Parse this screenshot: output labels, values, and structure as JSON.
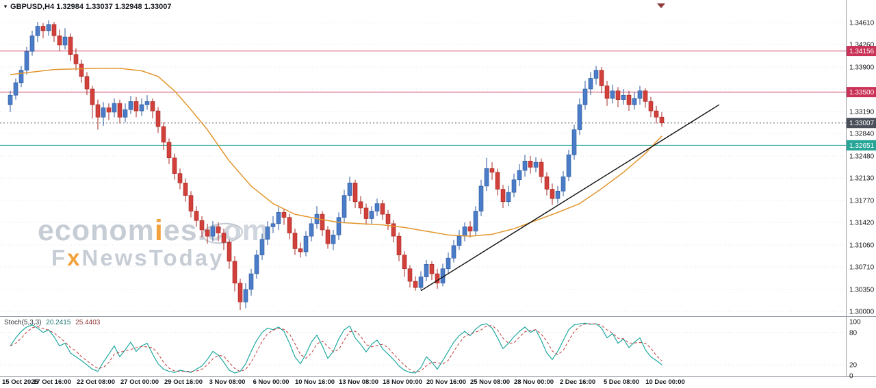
{
  "header": {
    "collapse_icon": "▾",
    "title": "GBPUSD,H4 1.32984 1.33037 1.32948 1.33007"
  },
  "watermark": {
    "line1": [
      {
        "t": "econom",
        "c": "g"
      },
      {
        "t": "i",
        "c": "o"
      },
      {
        "t": "es",
        "c": "g"
      },
      {
        "t": ".com",
        "c": "l"
      }
    ],
    "line2": [
      {
        "t": "F",
        "c": "g"
      },
      {
        "t": "x",
        "c": "o"
      },
      {
        "t": "NewsToday",
        "c": "g"
      }
    ]
  },
  "stoch_header": {
    "name": "Stoch(5,3,3)",
    "main": "20.2415",
    "signal": "25.4403"
  },
  "chart_data": {
    "type": "candlestick",
    "symbol": "GBPUSD",
    "timeframe": "H4",
    "title": "GBPUSD,H4",
    "quote_ohlc": {
      "open": 1.32984,
      "high": 1.33037,
      "low": 1.32948,
      "close": 1.33007
    },
    "colors": {
      "up": "#4a7cc7",
      "up_stroke": "#2a579c",
      "down": "#d2403b",
      "down_stroke": "#a6241f",
      "ma": "#e2962d",
      "trend": "#111111",
      "stoch_main": "#1fa8a0",
      "stoch_signal": "#c03a3a",
      "grid": "#dfe2e6",
      "axis_text": "#14161a",
      "separator": "#9aa0a8",
      "shift_marker": "#8a3b3b"
    },
    "y_axis": {
      "price_max": 1.3461,
      "price_min": 1.3,
      "grid_prices": [
        1.3461,
        1.3426,
        1.339,
        1.3355,
        1.3319,
        1.3284,
        1.3248,
        1.3213,
        1.3177,
        1.3142,
        1.3106,
        1.3071,
        1.3035,
        1.3
      ],
      "labels": [
        1.3461,
        1.3426,
        1.339,
        1.3319,
        1.3284,
        1.3248,
        1.3213,
        1.3177,
        1.3142,
        1.3106,
        1.3071,
        1.3035,
        1.3
      ]
    },
    "levels": [
      {
        "price": 1.34156,
        "color": "#cb3257",
        "style": "solid",
        "name": "resistance-line-1-34156"
      },
      {
        "price": 1.335,
        "color": "#cb3257",
        "style": "solid",
        "name": "resistance-line-1-33500"
      },
      {
        "price": 1.33007,
        "color": "#4a4f59",
        "style": "dotted",
        "name": "current-price-line"
      },
      {
        "price": 1.32651,
        "color": "#27a698",
        "style": "solid",
        "name": "support-line-1-32651"
      }
    ],
    "candles": [
      [
        1.333,
        1.3352,
        1.3318,
        1.3345
      ],
      [
        1.3345,
        1.3372,
        1.3338,
        1.3365
      ],
      [
        1.3365,
        1.3392,
        1.3358,
        1.3385
      ],
      [
        1.3385,
        1.3422,
        1.3378,
        1.3415
      ],
      [
        1.3415,
        1.3448,
        1.3408,
        1.344
      ],
      [
        1.344,
        1.3462,
        1.343,
        1.3455
      ],
      [
        1.3455,
        1.346,
        1.3436,
        1.3448
      ],
      [
        1.3448,
        1.3465,
        1.344,
        1.3458
      ],
      [
        1.3458,
        1.3462,
        1.343,
        1.344
      ],
      [
        1.344,
        1.345,
        1.3415,
        1.3425
      ],
      [
        1.3425,
        1.3452,
        1.3418,
        1.3438
      ],
      [
        1.3438,
        1.3444,
        1.34,
        1.341
      ],
      [
        1.341,
        1.342,
        1.3385,
        1.3395
      ],
      [
        1.3395,
        1.3402,
        1.3365,
        1.3375
      ],
      [
        1.3375,
        1.3382,
        1.3345,
        1.3355
      ],
      [
        1.3355,
        1.336,
        1.3308,
        1.333
      ],
      [
        1.333,
        1.3338,
        1.329,
        1.331
      ],
      [
        1.331,
        1.3334,
        1.3296,
        1.3325
      ],
      [
        1.3325,
        1.3332,
        1.3305,
        1.3318
      ],
      [
        1.3318,
        1.334,
        1.331,
        1.3332
      ],
      [
        1.3332,
        1.3338,
        1.33,
        1.331
      ],
      [
        1.331,
        1.3332,
        1.3302,
        1.3322
      ],
      [
        1.3322,
        1.3344,
        1.3315,
        1.3335
      ],
      [
        1.3335,
        1.3342,
        1.331,
        1.332
      ],
      [
        1.332,
        1.334,
        1.3312,
        1.333
      ],
      [
        1.333,
        1.3345,
        1.3322,
        1.3335
      ],
      [
        1.3335,
        1.334,
        1.3308,
        1.332
      ],
      [
        1.332,
        1.3326,
        1.3285,
        1.3295
      ],
      [
        1.3295,
        1.3302,
        1.3258,
        1.327
      ],
      [
        1.327,
        1.3276,
        1.3235,
        1.3245
      ],
      [
        1.3245,
        1.3252,
        1.321,
        1.322
      ],
      [
        1.322,
        1.3228,
        1.3195,
        1.3205
      ],
      [
        1.3205,
        1.3212,
        1.3175,
        1.3185
      ],
      [
        1.3185,
        1.3192,
        1.315,
        1.316
      ],
      [
        1.316,
        1.3168,
        1.3135,
        1.3145
      ],
      [
        1.3145,
        1.3152,
        1.3118,
        1.313
      ],
      [
        1.313,
        1.314,
        1.3108,
        1.312
      ],
      [
        1.312,
        1.3144,
        1.3112,
        1.3135
      ],
      [
        1.3135,
        1.3142,
        1.3112,
        1.3125
      ],
      [
        1.3125,
        1.3132,
        1.3098,
        1.311
      ],
      [
        1.311,
        1.3115,
        1.3068,
        1.308
      ],
      [
        1.308,
        1.3088,
        1.3032,
        1.3045
      ],
      [
        1.3045,
        1.3052,
        1.3002,
        1.3015
      ],
      [
        1.3015,
        1.3045,
        1.3005,
        1.3035
      ],
      [
        1.3035,
        1.3068,
        1.3025,
        1.306
      ],
      [
        1.306,
        1.3098,
        1.3052,
        1.309
      ],
      [
        1.309,
        1.3124,
        1.3082,
        1.3115
      ],
      [
        1.3115,
        1.3144,
        1.3106,
        1.3135
      ],
      [
        1.3135,
        1.3152,
        1.3125,
        1.314
      ],
      [
        1.314,
        1.3166,
        1.313,
        1.3158
      ],
      [
        1.3158,
        1.3164,
        1.3138,
        1.315
      ],
      [
        1.315,
        1.3156,
        1.3115,
        1.3125
      ],
      [
        1.3125,
        1.3132,
        1.309,
        1.31
      ],
      [
        1.31,
        1.311,
        1.3086,
        1.3095
      ],
      [
        1.3095,
        1.3128,
        1.3088,
        1.312
      ],
      [
        1.312,
        1.3148,
        1.3112,
        1.314
      ],
      [
        1.314,
        1.3168,
        1.3132,
        1.3155
      ],
      [
        1.3155,
        1.316,
        1.312,
        1.313
      ],
      [
        1.313,
        1.3136,
        1.31,
        1.3108
      ],
      [
        1.3108,
        1.313,
        1.3098,
        1.3122
      ],
      [
        1.3122,
        1.3158,
        1.3114,
        1.315
      ],
      [
        1.315,
        1.3194,
        1.3142,
        1.3185
      ],
      [
        1.3185,
        1.3215,
        1.3176,
        1.3205
      ],
      [
        1.3205,
        1.321,
        1.3165,
        1.3175
      ],
      [
        1.3175,
        1.3184,
        1.3155,
        1.3165
      ],
      [
        1.3165,
        1.3172,
        1.3138,
        1.3148
      ],
      [
        1.3148,
        1.3168,
        1.314,
        1.316
      ],
      [
        1.316,
        1.318,
        1.3152,
        1.3172
      ],
      [
        1.3172,
        1.3178,
        1.3146,
        1.3155
      ],
      [
        1.3155,
        1.3162,
        1.313,
        1.314
      ],
      [
        1.314,
        1.3146,
        1.311,
        1.312
      ],
      [
        1.312,
        1.3126,
        1.308,
        1.309
      ],
      [
        1.309,
        1.3096,
        1.3055,
        1.3068
      ],
      [
        1.3068,
        1.3074,
        1.3038,
        1.3048
      ],
      [
        1.3048,
        1.3056,
        1.3033,
        1.3038
      ],
      [
        1.3038,
        1.3064,
        1.3034,
        1.3055
      ],
      [
        1.3055,
        1.3082,
        1.3048,
        1.3075
      ],
      [
        1.3075,
        1.308,
        1.305,
        1.306
      ],
      [
        1.306,
        1.3068,
        1.3036,
        1.3045
      ],
      [
        1.3045,
        1.3076,
        1.304,
        1.3068
      ],
      [
        1.3068,
        1.3094,
        1.306,
        1.3085
      ],
      [
        1.3085,
        1.3114,
        1.3078,
        1.3105
      ],
      [
        1.3105,
        1.313,
        1.3098,
        1.312
      ],
      [
        1.312,
        1.3142,
        1.3112,
        1.3135
      ],
      [
        1.3135,
        1.3144,
        1.3118,
        1.3128
      ],
      [
        1.3128,
        1.3168,
        1.312,
        1.316
      ],
      [
        1.316,
        1.321,
        1.3152,
        1.32
      ],
      [
        1.32,
        1.3245,
        1.3192,
        1.3228
      ],
      [
        1.3228,
        1.3238,
        1.321,
        1.3222
      ],
      [
        1.3222,
        1.3228,
        1.3185,
        1.3195
      ],
      [
        1.3195,
        1.3202,
        1.3165,
        1.3175
      ],
      [
        1.3175,
        1.32,
        1.3168,
        1.319
      ],
      [
        1.319,
        1.322,
        1.3182,
        1.321
      ],
      [
        1.321,
        1.3235,
        1.32,
        1.3225
      ],
      [
        1.3225,
        1.325,
        1.3215,
        1.324
      ],
      [
        1.324,
        1.3248,
        1.322,
        1.323
      ],
      [
        1.323,
        1.3246,
        1.3222,
        1.3238
      ],
      [
        1.3238,
        1.3244,
        1.3205,
        1.3215
      ],
      [
        1.3215,
        1.3222,
        1.3185,
        1.3195
      ],
      [
        1.3195,
        1.3204,
        1.317,
        1.318
      ],
      [
        1.318,
        1.32,
        1.3172,
        1.3192
      ],
      [
        1.3192,
        1.3224,
        1.3184,
        1.3215
      ],
      [
        1.3215,
        1.3258,
        1.3208,
        1.325
      ],
      [
        1.325,
        1.3298,
        1.3242,
        1.329
      ],
      [
        1.329,
        1.334,
        1.3282,
        1.333
      ],
      [
        1.333,
        1.3368,
        1.3322,
        1.3355
      ],
      [
        1.3355,
        1.3382,
        1.3345,
        1.3372
      ],
      [
        1.3372,
        1.3392,
        1.3362,
        1.3385
      ],
      [
        1.3385,
        1.339,
        1.3348,
        1.336
      ],
      [
        1.336,
        1.3368,
        1.3328,
        1.334
      ],
      [
        1.334,
        1.3362,
        1.3332,
        1.3352
      ],
      [
        1.3352,
        1.3358,
        1.3326,
        1.3338
      ],
      [
        1.3338,
        1.3355,
        1.333,
        1.3345
      ],
      [
        1.3345,
        1.3352,
        1.332,
        1.333
      ],
      [
        1.333,
        1.335,
        1.3322,
        1.334
      ],
      [
        1.334,
        1.336,
        1.333,
        1.3352
      ],
      [
        1.3352,
        1.3356,
        1.3325,
        1.3335
      ],
      [
        1.3335,
        1.3342,
        1.331,
        1.332
      ],
      [
        1.332,
        1.3328,
        1.33,
        1.331
      ],
      [
        1.331,
        1.3318,
        1.3295,
        1.33007
      ]
    ],
    "ma_points": [
      [
        0,
        1.3378
      ],
      [
        8,
        1.3386
      ],
      [
        16,
        1.3388
      ],
      [
        20,
        1.3388
      ],
      [
        24,
        1.3384
      ],
      [
        27,
        1.3375
      ],
      [
        30,
        1.3352
      ],
      [
        33,
        1.3322
      ],
      [
        36,
        1.329
      ],
      [
        40,
        1.324
      ],
      [
        44,
        1.32
      ],
      [
        48,
        1.3172
      ],
      [
        52,
        1.3155
      ],
      [
        56,
        1.3148
      ],
      [
        60,
        1.3142
      ],
      [
        64,
        1.314
      ],
      [
        68,
        1.3138
      ],
      [
        72,
        1.3134
      ],
      [
        76,
        1.3128
      ],
      [
        80,
        1.3122
      ],
      [
        84,
        1.312
      ],
      [
        88,
        1.3123
      ],
      [
        92,
        1.3132
      ],
      [
        96,
        1.3145
      ],
      [
        100,
        1.3158
      ],
      [
        104,
        1.3172
      ],
      [
        108,
        1.3196
      ],
      [
        112,
        1.3222
      ],
      [
        116,
        1.3252
      ],
      [
        119,
        1.328
      ]
    ],
    "trendline": {
      "from": [
        75,
        1.3033
      ],
      "to": [
        129.5,
        1.333
      ]
    },
    "stoch": {
      "label": "Stoch(5,3,3)",
      "last_main": 20.2415,
      "last_signal": 25.4403,
      "levels": [
        100,
        80,
        20,
        0
      ],
      "dashed_levels": [
        80,
        20
      ],
      "k": [
        55,
        70,
        82,
        90,
        94,
        88,
        80,
        85,
        72,
        55,
        60,
        42,
        35,
        28,
        20,
        12,
        8,
        25,
        40,
        55,
        35,
        48,
        62,
        45,
        55,
        60,
        40,
        22,
        12,
        8,
        6,
        10,
        8,
        6,
        12,
        18,
        30,
        45,
        38,
        25,
        10,
        5,
        8,
        22,
        45,
        65,
        80,
        88,
        85,
        90,
        82,
        60,
        35,
        22,
        40,
        62,
        75,
        55,
        32,
        45,
        68,
        85,
        92,
        70,
        58,
        44,
        58,
        66,
        50,
        40,
        30,
        18,
        10,
        6,
        5,
        15,
        35,
        25,
        12,
        28,
        45,
        62,
        74,
        82,
        74,
        86,
        94,
        96,
        88,
        70,
        50,
        60,
        72,
        82,
        90,
        80,
        85,
        65,
        42,
        30,
        45,
        65,
        85,
        94,
        96,
        97,
        95,
        96,
        88,
        70,
        78,
        60,
        68,
        52,
        62,
        70,
        48,
        35,
        28,
        20.24
      ]
    },
    "x_ticks": [
      "15 Oct 2025",
      "17 Oct 16:00",
      "22 Oct 08:00",
      "27 Oct 00:00",
      "29 Oct 16:00",
      "3 Nov 08:00",
      "6 Nov 00:00",
      "10 Nov 16:00",
      "13 Nov 08:00",
      "18 Nov 00:00",
      "20 Nov 16:00",
      "25 Nov 08:00",
      "28 Nov 00:00",
      "2 Dec 16:00",
      "5 Dec 08:00",
      "10 Dec 00:00"
    ]
  }
}
